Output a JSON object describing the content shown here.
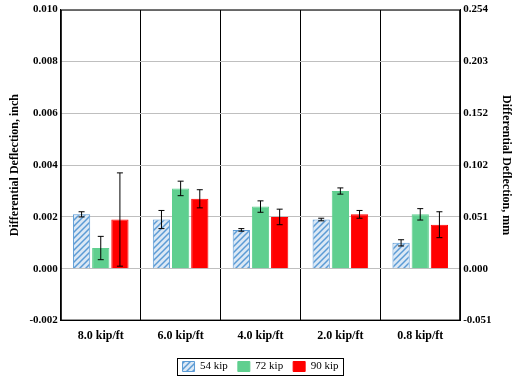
{
  "chart_data": {
    "type": "bar",
    "y_label": "Differential Deflection, inch",
    "y2_label": "Differential Deflection, mm",
    "categories": [
      "8.0 kip/ft",
      "6.0 kip/ft",
      "4.0 kip/ft",
      "2.0 kip/ft",
      "0.8 kip/ft"
    ],
    "series": [
      {
        "name": "54 kip",
        "color": "#5b9bd5",
        "values": [
          0.0021,
          0.0019,
          0.0015,
          0.0019,
          0.001
        ],
        "errors": [
          0.0001,
          0.00035,
          5e-05,
          5e-05,
          0.00012
        ]
      },
      {
        "name": "72 kip",
        "color": "#5fcf8f",
        "values": [
          0.0008,
          0.0031,
          0.0024,
          0.003,
          0.0021
        ],
        "errors": [
          0.00045,
          0.00028,
          0.00022,
          0.00012,
          0.00022
        ]
      },
      {
        "name": "90 kip",
        "color": "#ff0000",
        "values": [
          0.0019,
          0.0027,
          0.002,
          0.0021,
          0.0017
        ],
        "errors": [
          0.0018,
          0.00035,
          0.0003,
          0.00015,
          0.0005
        ]
      }
    ],
    "ylim": [
      -0.002,
      0.01
    ],
    "yticks": [
      {
        "value": -0.002,
        "label": "-0.002"
      },
      {
        "value": 0,
        "label": "0.000"
      },
      {
        "value": 0.002,
        "label": "0.002"
      },
      {
        "value": 0.004,
        "label": "0.004"
      },
      {
        "value": 0.006,
        "label": "0.006"
      },
      {
        "value": 0.008,
        "label": "0.008"
      },
      {
        "value": 0.01,
        "label": "0.010"
      }
    ],
    "y2lim": [
      -0.0508,
      0.254
    ],
    "y2ticks": [
      {
        "value": -0.0508,
        "label": "-0.051"
      },
      {
        "value": 0,
        "label": "0.000"
      },
      {
        "value": 0.0508,
        "label": "0.051"
      },
      {
        "value": 0.1016,
        "label": "0.102"
      },
      {
        "value": 0.1524,
        "label": "0.152"
      },
      {
        "value": 0.2032,
        "label": "0.203"
      },
      0.254
    ],
    "grid": true,
    "legend": "bottom"
  }
}
